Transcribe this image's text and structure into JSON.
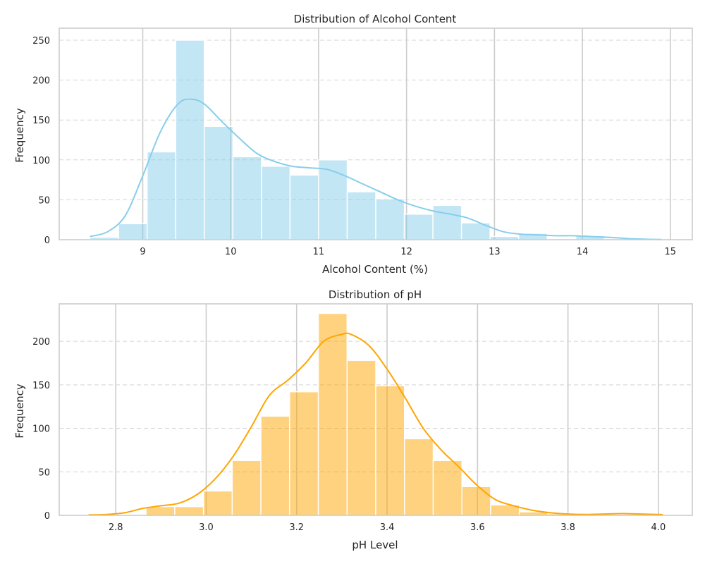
{
  "chart_data": [
    {
      "type": "bar",
      "title": "Distribution of Alcohol Content",
      "xlabel": "Alcohol Content (%)",
      "ylabel": "Frequency",
      "xlim": [
        8.05,
        15.25
      ],
      "ylim": [
        0,
        265
      ],
      "xticks": [
        9,
        10,
        11,
        12,
        13,
        14,
        15
      ],
      "yticks": [
        0,
        50,
        100,
        150,
        200,
        250
      ],
      "grid": {
        "x": true,
        "y": true,
        "y_dashed": true
      },
      "bar_color": "#87ceeb",
      "bar_alpha": 0.5,
      "kde_color": "#87ceeb",
      "bin_edges": [
        8.4,
        8.725,
        9.05,
        9.375,
        9.7,
        10.025,
        10.35,
        10.675,
        11.0,
        11.325,
        11.65,
        11.975,
        12.3,
        12.625,
        12.95,
        13.275,
        13.6,
        13.925,
        14.25,
        14.575,
        14.9
      ],
      "values": [
        3,
        20,
        110,
        250,
        142,
        104,
        92,
        81,
        100,
        60,
        51,
        32,
        43,
        21,
        4,
        8,
        0,
        5,
        1,
        1
      ],
      "kde": {
        "x": [
          8.4,
          8.6,
          8.8,
          9.0,
          9.2,
          9.4,
          9.55,
          9.7,
          9.9,
          10.1,
          10.3,
          10.5,
          10.7,
          10.9,
          11.1,
          11.3,
          11.5,
          11.7,
          11.9,
          12.1,
          12.3,
          12.5,
          12.7,
          12.9,
          13.1,
          13.3,
          13.5,
          13.7,
          13.9,
          14.1,
          14.3,
          14.5,
          14.7,
          14.9
        ],
        "y": [
          4,
          10,
          30,
          80,
          135,
          170,
          176,
          170,
          148,
          127,
          108,
          98,
          92,
          90,
          88,
          80,
          70,
          60,
          50,
          42,
          36,
          32,
          27,
          18,
          10,
          7,
          6,
          5,
          5,
          4,
          3,
          1.5,
          0.7,
          0.2
        ]
      }
    },
    {
      "type": "bar",
      "title": "Distribution of pH",
      "xlabel": "pH Level",
      "ylabel": "Frequency",
      "xlim": [
        2.675,
        4.075
      ],
      "ylim": [
        0,
        243
      ],
      "xticks": [
        2.8,
        3.0,
        3.2,
        3.4,
        3.6,
        3.8,
        4.0
      ],
      "xtick_labels": [
        "2.8",
        "3.0",
        "3.2",
        "3.4",
        "3.6",
        "3.8",
        "4.0"
      ],
      "yticks": [
        0,
        50,
        100,
        150,
        200
      ],
      "grid": {
        "x": true,
        "y": true,
        "y_dashed": true
      },
      "bar_color": "#ffa500",
      "bar_alpha": 0.5,
      "kde_color": "#ffa500",
      "bin_edges": [
        2.74,
        2.8035,
        2.867,
        2.9305,
        2.994,
        3.0575,
        3.121,
        3.1845,
        3.248,
        3.3115,
        3.375,
        3.4385,
        3.502,
        3.5655,
        3.629,
        3.6925,
        3.756,
        3.8195,
        3.883,
        3.9465,
        4.01
      ],
      "values": [
        1,
        0,
        10,
        10,
        28,
        63,
        114,
        142,
        232,
        178,
        149,
        88,
        63,
        33,
        12,
        4,
        2,
        0,
        0,
        1
      ],
      "kde": {
        "x": [
          2.74,
          2.78,
          2.82,
          2.86,
          2.9,
          2.94,
          2.98,
          3.02,
          3.06,
          3.1,
          3.14,
          3.18,
          3.22,
          3.26,
          3.3,
          3.32,
          3.36,
          3.4,
          3.44,
          3.48,
          3.52,
          3.56,
          3.6,
          3.64,
          3.68,
          3.72,
          3.76,
          3.8,
          3.84,
          3.88,
          3.92,
          3.96,
          4.0,
          4.01
        ],
        "y": [
          0.5,
          1,
          3,
          8,
          11,
          14,
          24,
          42,
          68,
          102,
          138,
          155,
          175,
          200,
          208,
          208,
          195,
          168,
          135,
          100,
          75,
          55,
          34,
          18,
          11,
          6,
          3,
          1.5,
          1,
          1.5,
          2,
          1.5,
          1,
          0.8
        ]
      }
    }
  ]
}
